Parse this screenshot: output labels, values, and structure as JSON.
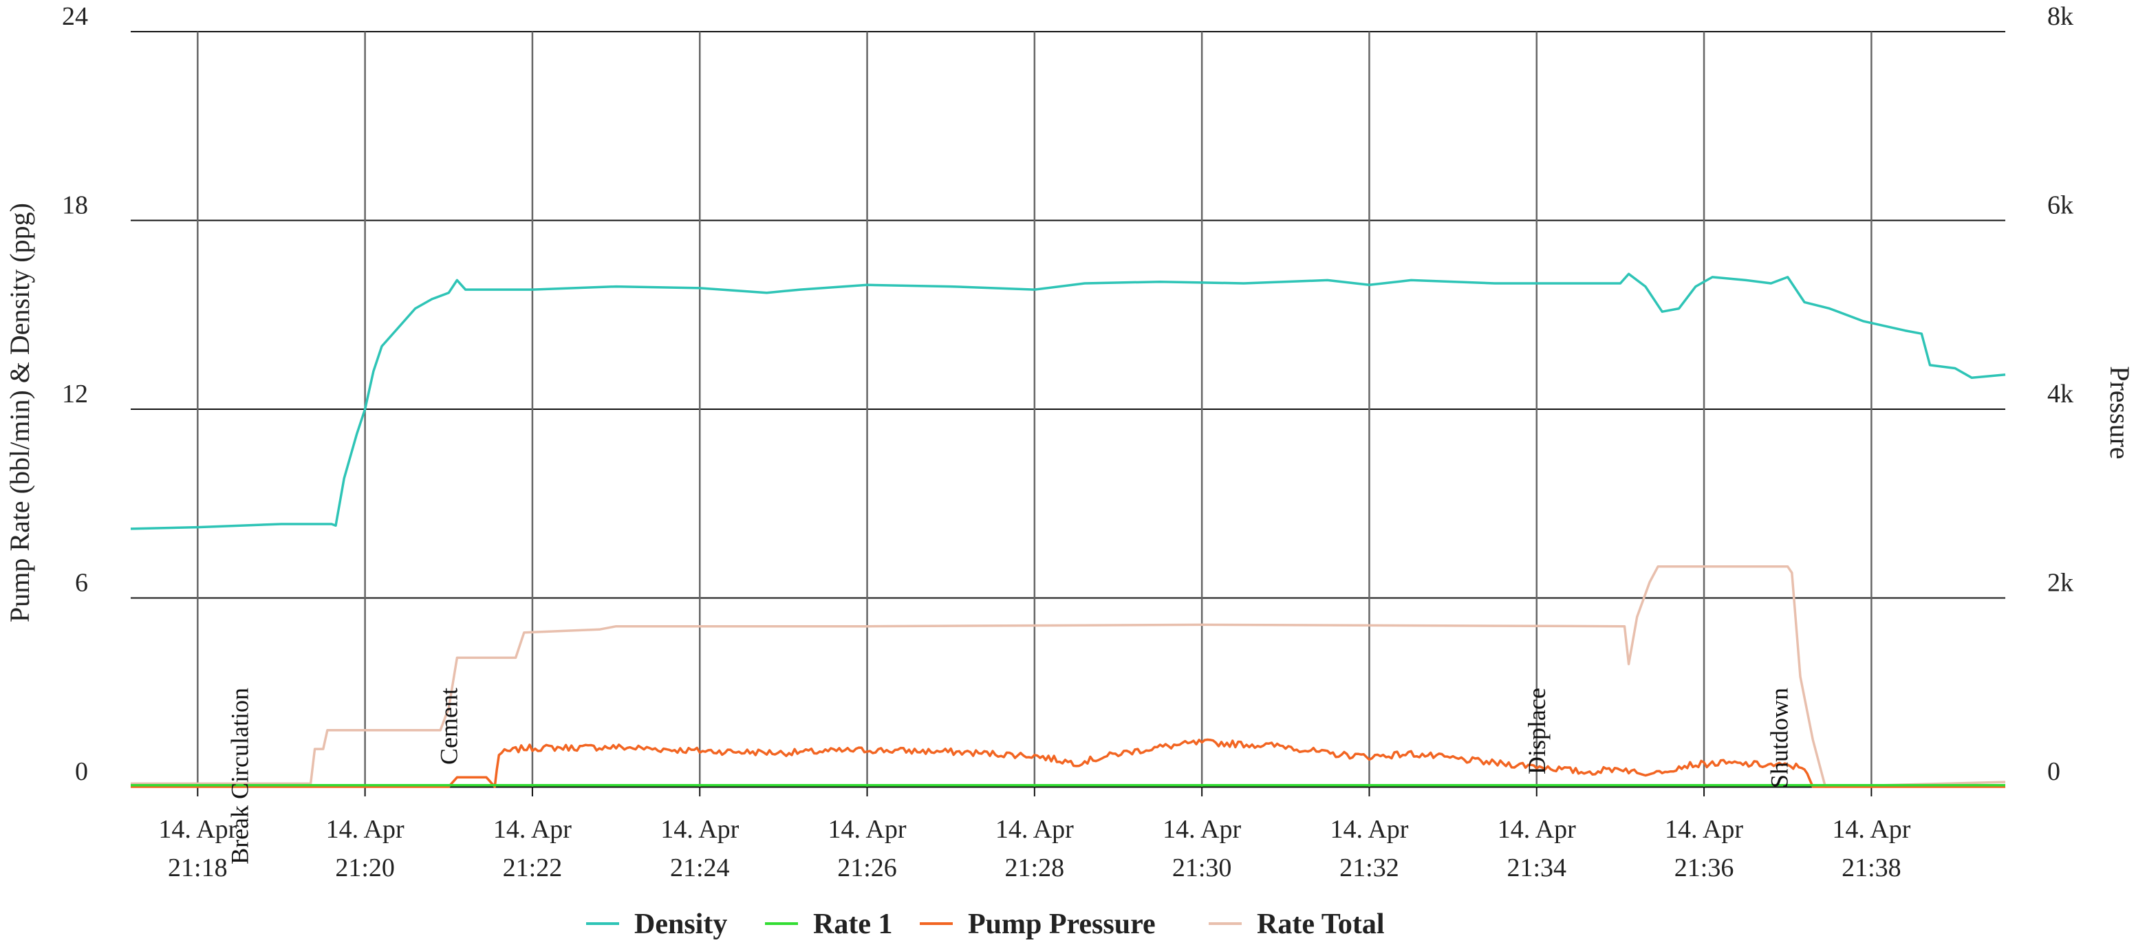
{
  "chart_data": {
    "type": "line",
    "ylabel": "Pump Rate (bbl/min) & Density (ppg)",
    "y2label": "Pressure",
    "ylim": [
      0,
      24
    ],
    "y2lim": [
      0,
      8000
    ],
    "yticks": [
      "0",
      "6",
      "12",
      "18",
      "24"
    ],
    "y2ticks": [
      "0",
      "2k",
      "4k",
      "6k",
      "8k"
    ],
    "xlim": [
      "21:17.2",
      "21:39.6"
    ],
    "xticks": [
      {
        "date": "14. Apr",
        "time": "21:18"
      },
      {
        "date": "14. Apr",
        "time": "21:20"
      },
      {
        "date": "14. Apr",
        "time": "21:22"
      },
      {
        "date": "14. Apr",
        "time": "21:24"
      },
      {
        "date": "14. Apr",
        "time": "21:26"
      },
      {
        "date": "14. Apr",
        "time": "21:28"
      },
      {
        "date": "14. Apr",
        "time": "21:30"
      },
      {
        "date": "14. Apr",
        "time": "21:32"
      },
      {
        "date": "14. Apr",
        "time": "21:34"
      },
      {
        "date": "14. Apr",
        "time": "21:36"
      },
      {
        "date": "14. Apr",
        "time": "21:38"
      }
    ],
    "grid": true,
    "legend_position": "bottom-center",
    "events": [
      {
        "label": "Break Circulation",
        "time": "21:18.6"
      },
      {
        "label": "Cement",
        "time": "21:21.1"
      },
      {
        "label": "Displace",
        "time": "21:34.1"
      },
      {
        "label": "Shutdown",
        "time": "21:37.0"
      }
    ],
    "series": [
      {
        "name": "Density",
        "color": "#2ec4b6",
        "axis": "left",
        "points": [
          [
            "21:17.2",
            8.2
          ],
          [
            "21:18.0",
            8.25
          ],
          [
            "21:19.0",
            8.35
          ],
          [
            "21:19.6",
            8.35
          ],
          [
            "21:19.65",
            8.3
          ],
          [
            "21:19.75",
            9.8
          ],
          [
            "21:19.9",
            11.2
          ],
          [
            "21:20.0",
            12.0
          ],
          [
            "21:20.1",
            13.2
          ],
          [
            "21:20.2",
            14.0
          ],
          [
            "21:20.4",
            14.6
          ],
          [
            "21:20.6",
            15.2
          ],
          [
            "21:20.8",
            15.5
          ],
          [
            "21:21.0",
            15.7
          ],
          [
            "21:21.1",
            16.1
          ],
          [
            "21:21.2",
            15.8
          ],
          [
            "21:22.0",
            15.8
          ],
          [
            "21:23.0",
            15.9
          ],
          [
            "21:24.0",
            15.85
          ],
          [
            "21:24.8",
            15.7
          ],
          [
            "21:25.2",
            15.8
          ],
          [
            "21:26.0",
            15.95
          ],
          [
            "21:27.0",
            15.9
          ],
          [
            "21:28.0",
            15.8
          ],
          [
            "21:28.6",
            16.0
          ],
          [
            "21:29.5",
            16.05
          ],
          [
            "21:30.5",
            16.0
          ],
          [
            "21:31.5",
            16.1
          ],
          [
            "21:32.0",
            15.95
          ],
          [
            "21:32.5",
            16.1
          ],
          [
            "21:33.5",
            16.0
          ],
          [
            "21:35.0",
            16.0
          ],
          [
            "21:35.1",
            16.3
          ],
          [
            "21:35.3",
            15.9
          ],
          [
            "21:35.5",
            15.1
          ],
          [
            "21:35.7",
            15.2
          ],
          [
            "21:35.9",
            15.9
          ],
          [
            "21:36.1",
            16.2
          ],
          [
            "21:36.5",
            16.1
          ],
          [
            "21:36.8",
            16.0
          ],
          [
            "21:37.0",
            16.2
          ],
          [
            "21:37.2",
            15.4
          ],
          [
            "21:37.5",
            15.2
          ],
          [
            "21:37.9",
            14.8
          ],
          [
            "21:38.4",
            14.5
          ],
          [
            "21:38.6",
            14.4
          ],
          [
            "21:38.7",
            13.4
          ],
          [
            "21:39.0",
            13.3
          ],
          [
            "21:39.2",
            13.0
          ],
          [
            "21:39.6",
            13.1
          ]
        ]
      },
      {
        "name": "Rate 1",
        "color": "#33dd33",
        "axis": "left",
        "points": [
          [
            "21:17.2",
            0.05
          ],
          [
            "21:39.6",
            0.05
          ]
        ]
      },
      {
        "name": "Pump Pressure",
        "color": "#f26522",
        "axis": "right",
        "points": [
          [
            "21:17.2",
            0
          ],
          [
            "21:21.0",
            0
          ],
          [
            "21:21.1",
            100
          ],
          [
            "21:21.45",
            100
          ],
          [
            "21:21.55",
            0
          ],
          [
            "21:21.6",
            350
          ],
          [
            "21:21.9",
            410
          ],
          [
            "21:23.0",
            420
          ],
          [
            "21:24.0",
            380
          ],
          [
            "21:25.0",
            360
          ],
          [
            "21:26.0",
            390
          ],
          [
            "21:27.0",
            370
          ],
          [
            "21:28.0",
            330
          ],
          [
            "21:28.5",
            250
          ],
          [
            "21:29.0",
            350
          ],
          [
            "21:29.5",
            420
          ],
          [
            "21:30.0",
            470
          ],
          [
            "21:31.0",
            430
          ],
          [
            "21:31.5",
            350
          ],
          [
            "21:32.0",
            320
          ],
          [
            "21:32.5",
            350
          ],
          [
            "21:33.0",
            300
          ],
          [
            "21:33.5",
            250
          ],
          [
            "21:34.0",
            220
          ],
          [
            "21:34.6",
            150
          ],
          [
            "21:35.0",
            200
          ],
          [
            "21:35.3",
            120
          ],
          [
            "21:35.5",
            170
          ],
          [
            "21:35.8",
            230
          ],
          [
            "21:36.2",
            250
          ],
          [
            "21:36.8",
            230
          ],
          [
            "21:37.2",
            210
          ],
          [
            "21:37.3",
            0
          ],
          [
            "21:39.6",
            0
          ]
        ]
      },
      {
        "name": "Rate Total",
        "color": "#e8bfad",
        "axis": "left",
        "points": [
          [
            "21:17.2",
            0.1
          ],
          [
            "21:19.35",
            0.1
          ],
          [
            "21:19.4",
            1.2
          ],
          [
            "21:19.5",
            1.2
          ],
          [
            "21:19.55",
            1.8
          ],
          [
            "21:20.9",
            1.8
          ],
          [
            "21:21.0",
            2.5
          ],
          [
            "21:21.1",
            4.1
          ],
          [
            "21:21.8",
            4.1
          ],
          [
            "21:21.9",
            4.9
          ],
          [
            "21:22.8",
            5.0
          ],
          [
            "21:23.0",
            5.1
          ],
          [
            "21:26.0",
            5.1
          ],
          [
            "21:30.0",
            5.15
          ],
          [
            "21:35.05",
            5.1
          ],
          [
            "21:35.1",
            3.9
          ],
          [
            "21:35.2",
            5.4
          ],
          [
            "21:35.35",
            6.5
          ],
          [
            "21:35.45",
            7.0
          ],
          [
            "21:37.0",
            7.0
          ],
          [
            "21:37.05",
            6.8
          ],
          [
            "21:37.15",
            3.5
          ],
          [
            "21:37.3",
            1.5
          ],
          [
            "21:37.45",
            0.0
          ],
          [
            "21:39.6",
            0.15
          ]
        ]
      }
    ]
  }
}
